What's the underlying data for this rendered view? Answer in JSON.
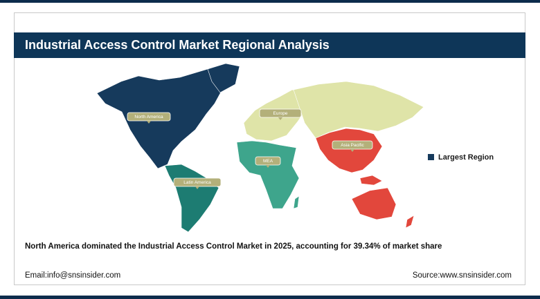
{
  "header": {
    "title": "Industrial Access Control Market Regional Analysis"
  },
  "regions": [
    {
      "label": "North America",
      "color": "#163a5c"
    },
    {
      "label": "Europe",
      "color": "#dfe4a8"
    },
    {
      "label": "Asia Pacific",
      "color": "#e2473c"
    },
    {
      "label": "MEA",
      "color": "#3ea58c"
    },
    {
      "label": "Latin America",
      "color": "#1d7c72"
    }
  ],
  "legend": {
    "label": "Largest Region",
    "color": "#163a5c"
  },
  "caption": "North America dominated the Industrial Access Control Market in 2025, accounting for 39.34% of market share",
  "footer": {
    "email": "Email:info@snsinsider.com",
    "source": "Source:www.snsinsider.com"
  }
}
